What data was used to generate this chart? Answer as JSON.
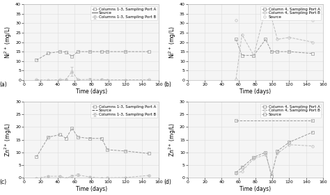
{
  "panel_a": {
    "label": "(a)",
    "ylabel": "Ni$^{2+}$ (mg/L)",
    "xlabel": "Time (days)",
    "ylim": [
      0,
      40
    ],
    "xlim": [
      0,
      160
    ],
    "yticks": [
      0,
      5,
      10,
      15,
      20,
      25,
      30,
      35,
      40
    ],
    "xticks": [
      0,
      20,
      40,
      60,
      80,
      100,
      120,
      140,
      160
    ],
    "series": {
      "portA": {
        "label": "Columns 1-3, Sampling Port A",
        "x": [
          15,
          29,
          43,
          50,
          57,
          64,
          78,
          92,
          99,
          120,
          148
        ],
        "y": [
          10.5,
          14.2,
          15.0,
          14.8,
          12.5,
          15.0,
          15.0,
          15.0,
          15.0,
          15.0,
          15.0
        ],
        "color": "#999999",
        "marker": "s",
        "ls": "--"
      },
      "portB": {
        "label": "Columns 1-3, Sampling Port B",
        "x": [
          15,
          29,
          43,
          50,
          57,
          64,
          78,
          92,
          99,
          120,
          148
        ],
        "y": [
          0.2,
          -0.1,
          0.15,
          0.3,
          4.5,
          0.2,
          0.3,
          0.2,
          0.1,
          0.1,
          0.2
        ],
        "color": "#bbbbbb",
        "marker": "o",
        "ls": "--",
        "yerr": [
          0.3,
          0.2,
          0.3,
          0.2,
          2.5,
          0.3,
          0.6,
          0.5,
          0.4,
          0.2,
          0.3
        ]
      },
      "source": {
        "label": "Source",
        "x": [
          15,
          50,
          148
        ],
        "y": [
          0.02,
          0.02,
          0.02
        ],
        "color": "#555555",
        "marker": "None",
        "ls": "-"
      }
    }
  },
  "panel_b": {
    "label": "(b)",
    "ylabel": "Ni$^{2+}$ (mg/L)",
    "xlabel": "Time (days)",
    "ylim": [
      0,
      40
    ],
    "xlim": [
      0,
      160
    ],
    "yticks": [
      0,
      5,
      10,
      15,
      20,
      25,
      30,
      35,
      40
    ],
    "xticks": [
      0,
      20,
      40,
      60,
      80,
      100,
      120,
      140,
      160
    ],
    "series": {
      "portA": {
        "label": "Column 4, Sampling Port A",
        "x": [
          57,
          64,
          78,
          92,
          99,
          106,
          120,
          148
        ],
        "y": [
          21.5,
          13.0,
          13.0,
          21.5,
          15.0,
          15.0,
          15.0,
          14.0
        ],
        "color": "#999999",
        "marker": "s",
        "ls": "--"
      },
      "portB": {
        "label": "Column 4, Sampling Port B",
        "x": [
          57,
          64,
          78,
          92,
          99,
          106,
          120,
          148
        ],
        "y": [
          0.5,
          24.0,
          13.0,
          37.5,
          33.0,
          21.5,
          22.5,
          20.0
        ],
        "color": "#bbbbbb",
        "marker": "o",
        "ls": "--"
      },
      "source": {
        "label": "Source",
        "x": [
          57,
          148
        ],
        "y": [
          31.5,
          31.5
        ],
        "color": "#bbbbbb",
        "marker": "o",
        "ls": "None"
      }
    }
  },
  "panel_c": {
    "label": "(c)",
    "ylabel": "Zn$^{2+}$ (mg/L)",
    "xlabel": "Time (days)",
    "ylim": [
      0,
      30
    ],
    "xlim": [
      0,
      160
    ],
    "yticks": [
      0,
      5,
      10,
      15,
      20,
      25,
      30
    ],
    "xticks": [
      0,
      20,
      40,
      60,
      80,
      100,
      120,
      140,
      160
    ],
    "series": {
      "portA": {
        "label": "Columns 1-3, Sampling Port A",
        "x": [
          15,
          29,
          43,
          50,
          57,
          64,
          78,
          92,
          99,
          120,
          148
        ],
        "y": [
          8.2,
          16.0,
          17.0,
          15.5,
          19.5,
          16.0,
          15.5,
          15.5,
          11.0,
          10.5,
          9.5
        ],
        "color": "#999999",
        "marker": "s",
        "ls": "--"
      },
      "portB": {
        "label": "Columns 1-3, Sampling Port B",
        "x": [
          15,
          29,
          43,
          50,
          57,
          64,
          78,
          92,
          99,
          120,
          148
        ],
        "y": [
          -0.3,
          0.5,
          0.5,
          -0.3,
          0.6,
          1.0,
          0.2,
          -0.2,
          -0.1,
          0.0,
          0.8
        ],
        "color": "#bbbbbb",
        "marker": "o",
        "ls": "--",
        "yerr": [
          0.2,
          0.3,
          0.3,
          0.2,
          0.4,
          0.5,
          0.2,
          0.3,
          0.2,
          0.1,
          0.2
        ]
      },
      "source": {
        "label": "Source",
        "x": [
          15,
          50,
          148
        ],
        "y": [
          0.02,
          0.02,
          0.02
        ],
        "color": "#555555",
        "marker": "None",
        "ls": "--"
      }
    }
  },
  "panel_d": {
    "label": "(d)",
    "ylabel": "Zn$^{2+}$ (mg/L)",
    "xlabel": "Time (days)",
    "ylim": [
      0,
      30
    ],
    "xlim": [
      0,
      160
    ],
    "yticks": [
      0,
      5,
      10,
      15,
      20,
      25,
      30
    ],
    "xticks": [
      0,
      20,
      40,
      60,
      80,
      100,
      120,
      140,
      160
    ],
    "series": {
      "portA": {
        "label": "Column 4, Sampling Port A",
        "x": [
          57,
          64,
          78,
          92,
          99,
          106,
          120,
          148
        ],
        "y": [
          2.0,
          4.0,
          8.0,
          10.0,
          0.5,
          10.5,
          14.0,
          18.0
        ],
        "color": "#999999",
        "marker": "s",
        "ls": "--"
      },
      "portB": {
        "label": "Column 4, Sampling Port B",
        "x": [
          57,
          64,
          78,
          92,
          99,
          106,
          120,
          148
        ],
        "y": [
          1.5,
          2.5,
          7.5,
          9.0,
          1.5,
          9.5,
          13.0,
          12.5
        ],
        "color": "#bbbbbb",
        "marker": "o",
        "ls": "--"
      },
      "source": {
        "label": "Source",
        "x": [
          57,
          148
        ],
        "y": [
          22.5,
          22.5
        ],
        "color": "#999999",
        "marker": "s",
        "ls": "--"
      }
    }
  },
  "bg_color": "#ffffff",
  "ax_bg_color": "#f5f5f5",
  "legend_fontsize": 4.0,
  "tick_fontsize": 4.5,
  "label_fontsize": 5.5,
  "ms": 2.5,
  "lw": 0.7,
  "capsize": 1.5,
  "elinewidth": 0.5,
  "grid_color": "#dddddd"
}
